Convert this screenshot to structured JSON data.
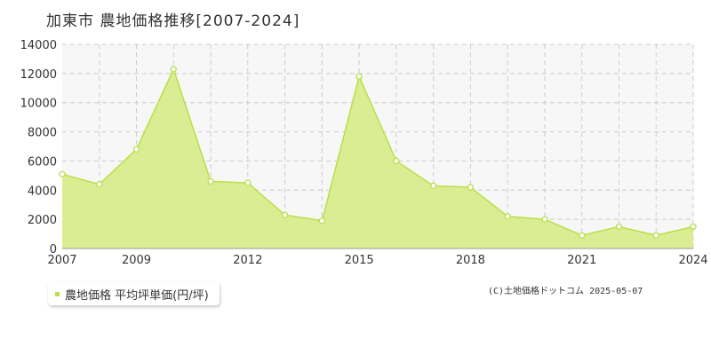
{
  "page": {
    "title": "加東市 農地価格推移[2007-2024]",
    "copyright": "(C)土地価格ドットコム 2025-05-07"
  },
  "colors": {
    "fill": "#dbed93",
    "line": "#b9df4a",
    "marker_fill": "#ffffff",
    "grid": "#cccccc",
    "plot_bg": "#f7f7f7",
    "axis_text": "#333333"
  },
  "chart_data": {
    "type": "area",
    "title": "加東市 農地価格推移[2007-2024]",
    "xlabel": "",
    "ylabel": "",
    "x": [
      2007,
      2008,
      2009,
      2010,
      2011,
      2012,
      2013,
      2014,
      2015,
      2016,
      2017,
      2018,
      2019,
      2020,
      2021,
      2022,
      2023,
      2024
    ],
    "series": [
      {
        "name": "農地価格 平均坪単価(円/坪)",
        "values": [
          5100,
          4400,
          6800,
          12300,
          4600,
          4500,
          2300,
          1900,
          11800,
          6000,
          4300,
          4200,
          2200,
          2000,
          900,
          1500,
          900,
          1500
        ]
      }
    ],
    "xlim": [
      2007,
      2024
    ],
    "ylim": [
      0,
      14000
    ],
    "yticks": [
      0,
      2000,
      4000,
      6000,
      8000,
      10000,
      12000,
      14000
    ],
    "xtick_labels": [
      2007,
      2009,
      2012,
      2015,
      2018,
      2021,
      2024
    ],
    "grid": true,
    "legend": "bottom-left"
  }
}
